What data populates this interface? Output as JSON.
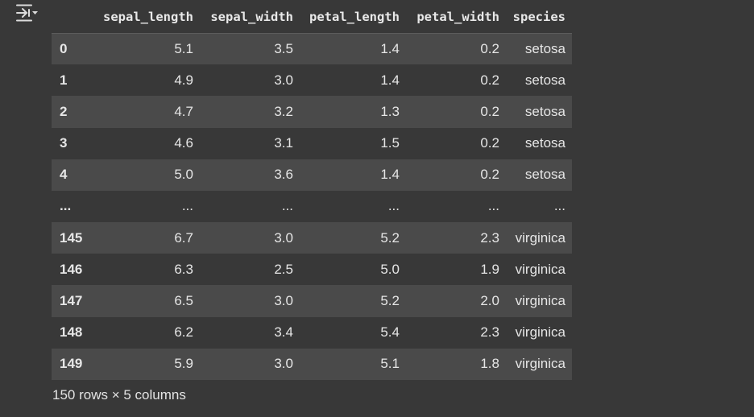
{
  "toolbar": {
    "output_toggle_icon": "output-collapse-icon"
  },
  "table": {
    "columns": [
      "sepal_length",
      "sepal_width",
      "petal_length",
      "petal_width",
      "species"
    ],
    "rows": [
      {
        "index": "0",
        "cells": [
          "5.1",
          "3.5",
          "1.4",
          "0.2",
          "setosa"
        ]
      },
      {
        "index": "1",
        "cells": [
          "4.9",
          "3.0",
          "1.4",
          "0.2",
          "setosa"
        ]
      },
      {
        "index": "2",
        "cells": [
          "4.7",
          "3.2",
          "1.3",
          "0.2",
          "setosa"
        ]
      },
      {
        "index": "3",
        "cells": [
          "4.6",
          "3.1",
          "1.5",
          "0.2",
          "setosa"
        ]
      },
      {
        "index": "4",
        "cells": [
          "5.0",
          "3.6",
          "1.4",
          "0.2",
          "setosa"
        ]
      },
      {
        "index": "...",
        "cells": [
          "...",
          "...",
          "...",
          "...",
          "..."
        ]
      },
      {
        "index": "145",
        "cells": [
          "6.7",
          "3.0",
          "5.2",
          "2.3",
          "virginica"
        ]
      },
      {
        "index": "146",
        "cells": [
          "6.3",
          "2.5",
          "5.0",
          "1.9",
          "virginica"
        ]
      },
      {
        "index": "147",
        "cells": [
          "6.5",
          "3.0",
          "5.2",
          "2.0",
          "virginica"
        ]
      },
      {
        "index": "148",
        "cells": [
          "6.2",
          "3.4",
          "5.4",
          "2.3",
          "virginica"
        ]
      },
      {
        "index": "149",
        "cells": [
          "5.9",
          "3.0",
          "5.1",
          "1.8",
          "virginica"
        ]
      }
    ]
  },
  "summary": "150 rows × 5 columns",
  "colors": {
    "background": "#383838",
    "row_stripe": "#4a4a4a",
    "text": "#e3e3e3"
  }
}
